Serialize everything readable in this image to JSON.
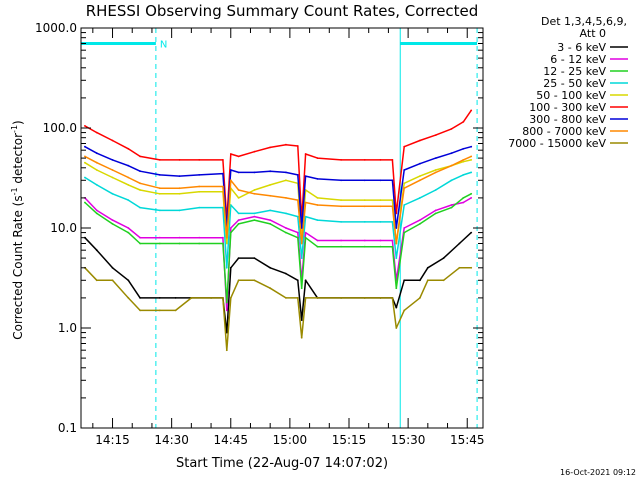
{
  "chart_data": {
    "type": "line",
    "title": "RHESSI Observing Summary Count Rates, Corrected",
    "xlabel": "Start Time (22-Aug-07 14:07:02)",
    "ylabel_main": "Corrected Count Rate (s",
    "ylabel_sup1": "-1",
    "ylabel_mid": " detector",
    "ylabel_sup2": "-1",
    "ylabel_end": ")",
    "yscale": "log",
    "ylim": [
      0.1,
      1000
    ],
    "xlim_minutes": [
      0,
      102
    ],
    "y_ticks": [
      {
        "v": 0.1,
        "label": "0.1"
      },
      {
        "v": 1,
        "label": "1.0"
      },
      {
        "v": 10,
        "label": "10.0"
      },
      {
        "v": 100,
        "label": "100.0"
      },
      {
        "v": 1000,
        "label": "1000.0"
      }
    ],
    "x_ticks": [
      {
        "min": 8,
        "label": "14:15"
      },
      {
        "min": 23,
        "label": "14:30"
      },
      {
        "min": 38,
        "label": "14:45"
      },
      {
        "min": 53,
        "label": "15:00"
      },
      {
        "min": 68,
        "label": "15:15"
      },
      {
        "min": 83,
        "label": "15:30"
      },
      {
        "min": 98,
        "label": "15:45"
      }
    ],
    "legend_header": [
      "Det 1,3,4,5,6,9,",
      "Att 0"
    ],
    "series": [
      {
        "name": "3 - 6 keV",
        "color": "#000000",
        "points": [
          [
            1,
            8
          ],
          [
            4,
            6
          ],
          [
            8,
            4
          ],
          [
            12,
            3
          ],
          [
            15,
            2
          ],
          [
            20,
            2
          ],
          [
            24,
            2
          ],
          [
            28,
            2
          ],
          [
            33,
            2
          ],
          [
            36,
            2
          ],
          [
            37,
            0.9
          ],
          [
            38,
            4
          ],
          [
            40,
            5
          ],
          [
            44,
            5
          ],
          [
            48,
            4
          ],
          [
            52,
            3.5
          ],
          [
            55,
            3
          ],
          [
            56,
            1.2
          ],
          [
            57,
            3
          ],
          [
            60,
            2
          ],
          [
            66,
            2
          ],
          [
            72,
            2
          ],
          [
            76,
            2
          ],
          [
            79,
            2
          ],
          [
            80,
            1.6
          ],
          [
            82,
            3
          ],
          [
            86,
            3
          ],
          [
            88,
            4
          ],
          [
            92,
            5
          ],
          [
            96,
            7
          ],
          [
            99,
            9
          ]
        ]
      },
      {
        "name": "6 - 12 keV",
        "color": "#e000e0",
        "points": [
          [
            1,
            20
          ],
          [
            4,
            15
          ],
          [
            8,
            12
          ],
          [
            12,
            10
          ],
          [
            15,
            8
          ],
          [
            20,
            8
          ],
          [
            25,
            8
          ],
          [
            30,
            8
          ],
          [
            36,
            8
          ],
          [
            37,
            1.5
          ],
          [
            38,
            10
          ],
          [
            40,
            12
          ],
          [
            44,
            13
          ],
          [
            48,
            12
          ],
          [
            52,
            10
          ],
          [
            55,
            9
          ],
          [
            56,
            3
          ],
          [
            57,
            9
          ],
          [
            60,
            7.5
          ],
          [
            66,
            7.5
          ],
          [
            72,
            7.5
          ],
          [
            76,
            7.5
          ],
          [
            79,
            7.5
          ],
          [
            80,
            3
          ],
          [
            82,
            10
          ],
          [
            86,
            12
          ],
          [
            90,
            15
          ],
          [
            94,
            17
          ],
          [
            97,
            18
          ],
          [
            99,
            20
          ]
        ]
      },
      {
        "name": "12 - 25 keV",
        "color": "#20d020",
        "points": [
          [
            1,
            18
          ],
          [
            4,
            14
          ],
          [
            8,
            11
          ],
          [
            12,
            9
          ],
          [
            15,
            7
          ],
          [
            20,
            7
          ],
          [
            25,
            7
          ],
          [
            30,
            7
          ],
          [
            36,
            7
          ],
          [
            37,
            1.8
          ],
          [
            38,
            9
          ],
          [
            40,
            11
          ],
          [
            44,
            12
          ],
          [
            48,
            11
          ],
          [
            52,
            9
          ],
          [
            55,
            8
          ],
          [
            56,
            2.5
          ],
          [
            57,
            8
          ],
          [
            60,
            6.5
          ],
          [
            66,
            6.5
          ],
          [
            72,
            6.5
          ],
          [
            76,
            6.5
          ],
          [
            79,
            6.5
          ],
          [
            80,
            2.5
          ],
          [
            82,
            9
          ],
          [
            86,
            11
          ],
          [
            90,
            14
          ],
          [
            94,
            16
          ],
          [
            97,
            20
          ],
          [
            99,
            22
          ]
        ]
      },
      {
        "name": "25 - 50 keV",
        "color": "#00d8d8",
        "points": [
          [
            1,
            32
          ],
          [
            4,
            27
          ],
          [
            8,
            22
          ],
          [
            12,
            19
          ],
          [
            15,
            16
          ],
          [
            20,
            15
          ],
          [
            25,
            15
          ],
          [
            30,
            16
          ],
          [
            36,
            16
          ],
          [
            37,
            4
          ],
          [
            38,
            17
          ],
          [
            40,
            14
          ],
          [
            44,
            14
          ],
          [
            48,
            15
          ],
          [
            52,
            14
          ],
          [
            55,
            13
          ],
          [
            56,
            5
          ],
          [
            57,
            13
          ],
          [
            60,
            12
          ],
          [
            66,
            11.5
          ],
          [
            72,
            11.5
          ],
          [
            76,
            11.5
          ],
          [
            79,
            11.5
          ],
          [
            80,
            5
          ],
          [
            82,
            17
          ],
          [
            86,
            20
          ],
          [
            90,
            24
          ],
          [
            94,
            30
          ],
          [
            97,
            34
          ],
          [
            99,
            36
          ]
        ]
      },
      {
        "name": "50 - 100 keV",
        "color": "#d8d800",
        "points": [
          [
            1,
            45
          ],
          [
            4,
            38
          ],
          [
            8,
            32
          ],
          [
            12,
            27
          ],
          [
            15,
            24
          ],
          [
            20,
            22
          ],
          [
            25,
            22
          ],
          [
            30,
            23
          ],
          [
            36,
            23
          ],
          [
            37,
            7
          ],
          [
            38,
            25
          ],
          [
            40,
            20
          ],
          [
            44,
            24
          ],
          [
            48,
            27
          ],
          [
            52,
            30
          ],
          [
            55,
            28
          ],
          [
            56,
            8
          ],
          [
            57,
            24
          ],
          [
            60,
            20
          ],
          [
            66,
            19
          ],
          [
            72,
            19
          ],
          [
            76,
            19
          ],
          [
            79,
            19
          ],
          [
            80,
            7
          ],
          [
            82,
            28
          ],
          [
            86,
            33
          ],
          [
            90,
            38
          ],
          [
            94,
            42
          ],
          [
            97,
            46
          ],
          [
            99,
            48
          ]
        ]
      },
      {
        "name": "100 - 300 keV",
        "color": "#ff0000",
        "points": [
          [
            1,
            105
          ],
          [
            4,
            90
          ],
          [
            8,
            75
          ],
          [
            12,
            62
          ],
          [
            15,
            52
          ],
          [
            20,
            48
          ],
          [
            25,
            48
          ],
          [
            30,
            48
          ],
          [
            36,
            48
          ],
          [
            37,
            12
          ],
          [
            38,
            55
          ],
          [
            40,
            52
          ],
          [
            44,
            58
          ],
          [
            48,
            64
          ],
          [
            52,
            68
          ],
          [
            55,
            66
          ],
          [
            56,
            12
          ],
          [
            57,
            55
          ],
          [
            60,
            50
          ],
          [
            66,
            48
          ],
          [
            72,
            48
          ],
          [
            76,
            48
          ],
          [
            79,
            48
          ],
          [
            80,
            14
          ],
          [
            82,
            65
          ],
          [
            86,
            75
          ],
          [
            90,
            85
          ],
          [
            94,
            98
          ],
          [
            97,
            115
          ],
          [
            99,
            150
          ]
        ]
      },
      {
        "name": "300 - 800 keV",
        "color": "#0000d8",
        "points": [
          [
            1,
            65
          ],
          [
            4,
            56
          ],
          [
            8,
            48
          ],
          [
            12,
            42
          ],
          [
            15,
            37
          ],
          [
            20,
            34
          ],
          [
            25,
            33
          ],
          [
            30,
            34
          ],
          [
            36,
            35
          ],
          [
            37,
            10
          ],
          [
            38,
            38
          ],
          [
            40,
            36
          ],
          [
            44,
            36
          ],
          [
            48,
            37
          ],
          [
            52,
            36
          ],
          [
            55,
            34
          ],
          [
            56,
            10
          ],
          [
            57,
            33
          ],
          [
            60,
            31
          ],
          [
            66,
            30
          ],
          [
            72,
            30
          ],
          [
            76,
            30
          ],
          [
            79,
            30
          ],
          [
            80,
            10
          ],
          [
            82,
            38
          ],
          [
            86,
            44
          ],
          [
            90,
            50
          ],
          [
            94,
            56
          ],
          [
            97,
            62
          ],
          [
            99,
            65
          ]
        ]
      },
      {
        "name": "800 - 7000 keV",
        "color": "#ff8800",
        "points": [
          [
            1,
            52
          ],
          [
            4,
            45
          ],
          [
            8,
            38
          ],
          [
            12,
            32
          ],
          [
            15,
            28
          ],
          [
            20,
            25
          ],
          [
            25,
            25
          ],
          [
            30,
            26
          ],
          [
            36,
            26
          ],
          [
            37,
            8
          ],
          [
            38,
            30
          ],
          [
            40,
            24
          ],
          [
            44,
            22
          ],
          [
            48,
            21
          ],
          [
            52,
            20
          ],
          [
            55,
            19
          ],
          [
            56,
            7
          ],
          [
            57,
            18
          ],
          [
            60,
            17
          ],
          [
            66,
            16.5
          ],
          [
            72,
            16.5
          ],
          [
            76,
            16.5
          ],
          [
            79,
            16.5
          ],
          [
            80,
            7
          ],
          [
            82,
            25
          ],
          [
            86,
            30
          ],
          [
            90,
            36
          ],
          [
            94,
            42
          ],
          [
            97,
            48
          ],
          [
            99,
            52
          ]
        ]
      },
      {
        "name": "7000 - 15000 keV",
        "color": "#9a8a00",
        "points": [
          [
            1,
            4
          ],
          [
            4,
            3
          ],
          [
            8,
            3
          ],
          [
            12,
            2
          ],
          [
            15,
            1.5
          ],
          [
            20,
            1.5
          ],
          [
            24,
            1.5
          ],
          [
            28,
            2
          ],
          [
            33,
            2
          ],
          [
            36,
            2
          ],
          [
            37,
            0.6
          ],
          [
            38,
            2
          ],
          [
            40,
            3
          ],
          [
            44,
            3
          ],
          [
            48,
            2.5
          ],
          [
            52,
            2
          ],
          [
            55,
            2
          ],
          [
            56,
            0.8
          ],
          [
            57,
            2
          ],
          [
            60,
            2
          ],
          [
            66,
            2
          ],
          [
            72,
            2
          ],
          [
            76,
            2
          ],
          [
            79,
            2
          ],
          [
            80,
            1
          ],
          [
            82,
            1.5
          ],
          [
            86,
            2
          ],
          [
            88,
            3
          ],
          [
            92,
            3
          ],
          [
            96,
            4
          ],
          [
            99,
            4
          ]
        ]
      }
    ],
    "annotations": {
      "marker_label": "N",
      "marker_color": "#00e8e8",
      "night_intervals_min": [
        [
          0,
          19
        ],
        [
          81,
          100.5
        ]
      ],
      "night_level": 700,
      "dashed_lines_min": [
        19,
        100.5
      ],
      "solid_lines_min": [
        81
      ]
    },
    "timestamp": "16-Oct-2021 09:12"
  }
}
